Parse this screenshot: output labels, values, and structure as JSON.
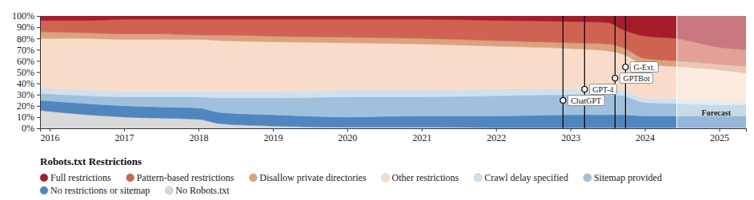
{
  "chart_data": {
    "type": "area",
    "stacked": true,
    "legend_title": "Robots.txt Restrictions",
    "x": [
      2015.87,
      2016.5,
      2017,
      2017.5,
      2018,
      2018.3,
      2019,
      2020,
      2021,
      2022,
      2023,
      2023.5,
      2023.7,
      2024,
      2024.42,
      2025,
      2025.36
    ],
    "xlim": [
      2015.87,
      2025.36
    ],
    "xticks": [
      2016,
      2017,
      2018,
      2019,
      2020,
      2021,
      2022,
      2023,
      2024,
      2025
    ],
    "ylim": [
      0,
      100
    ],
    "yticks": [
      {
        "value": 0,
        "label": "0%"
      },
      {
        "value": 10,
        "label": "10%"
      },
      {
        "value": 20,
        "label": "20%"
      },
      {
        "value": 30,
        "label": "30%"
      },
      {
        "value": 40,
        "label": "40%"
      },
      {
        "value": 50,
        "label": "50%"
      },
      {
        "value": 60,
        "label": "60%"
      },
      {
        "value": 70,
        "label": "70%"
      },
      {
        "value": 80,
        "label": "80%"
      },
      {
        "value": 90,
        "label": "90%"
      },
      {
        "value": 100,
        "label": "100%"
      }
    ],
    "series": [
      {
        "name": "Full restrictions",
        "color": "#a51d2b",
        "values": [
          4,
          4,
          3,
          3,
          3,
          3,
          3,
          3,
          3,
          4,
          5,
          6,
          12,
          18,
          20,
          28,
          30
        ]
      },
      {
        "name": "Pattern-based restrictions",
        "color": "#cf6352",
        "values": [
          10,
          11,
          13,
          13,
          14,
          14,
          15,
          16,
          17,
          18,
          19,
          19,
          16,
          20,
          20,
          15,
          15
        ]
      },
      {
        "name": "Disallow private directories",
        "color": "#dba27f",
        "values": [
          6,
          5,
          5,
          5,
          4,
          5,
          5,
          5,
          5,
          5,
          5,
          6,
          6,
          5,
          5,
          5,
          6
        ]
      },
      {
        "name": "Other restrictions",
        "color": "#f8dcc9",
        "values": [
          44,
          46,
          46,
          46,
          46,
          45,
          44,
          42,
          41,
          38,
          36,
          34,
          32,
          30,
          29,
          28,
          26
        ]
      },
      {
        "name": "Crawl delay specified",
        "color": "#cfe0ee",
        "values": [
          5,
          5,
          5,
          5,
          5,
          6,
          6,
          6,
          6,
          6,
          5,
          5,
          5,
          4,
          4,
          3,
          2
        ]
      },
      {
        "name": "Sitemap provided",
        "color": "#9fc1de",
        "values": [
          6,
          7,
          8,
          9,
          10,
          13,
          15,
          18,
          17,
          18,
          18,
          18,
          17,
          12,
          11,
          10,
          10
        ]
      },
      {
        "name": "No restrictions or sitemap",
        "color": "#4f86bf",
        "values": [
          9,
          10,
          10,
          10,
          10,
          10,
          10,
          9,
          10,
          10.5,
          11.5,
          11.5,
          11.5,
          10.5,
          10.5,
          10.5,
          10.5
        ]
      },
      {
        "name": "No Robots.txt",
        "color": "#d9d9d9",
        "values": [
          16,
          12,
          10,
          9,
          8,
          4,
          2,
          1,
          1,
          0.5,
          0.5,
          0.5,
          0.5,
          0.5,
          0.5,
          0.5,
          0.5
        ]
      }
    ],
    "events": [
      {
        "x": 2022.9,
        "label": "ChatGPT"
      },
      {
        "x": 2023.19,
        "label": "GPT-4"
      },
      {
        "x": 2023.6,
        "label": "GPTBot"
      },
      {
        "x": 2023.74,
        "label": "G-Ext."
      }
    ],
    "forecast": {
      "start": 2024.43,
      "label": "Forecast"
    }
  }
}
